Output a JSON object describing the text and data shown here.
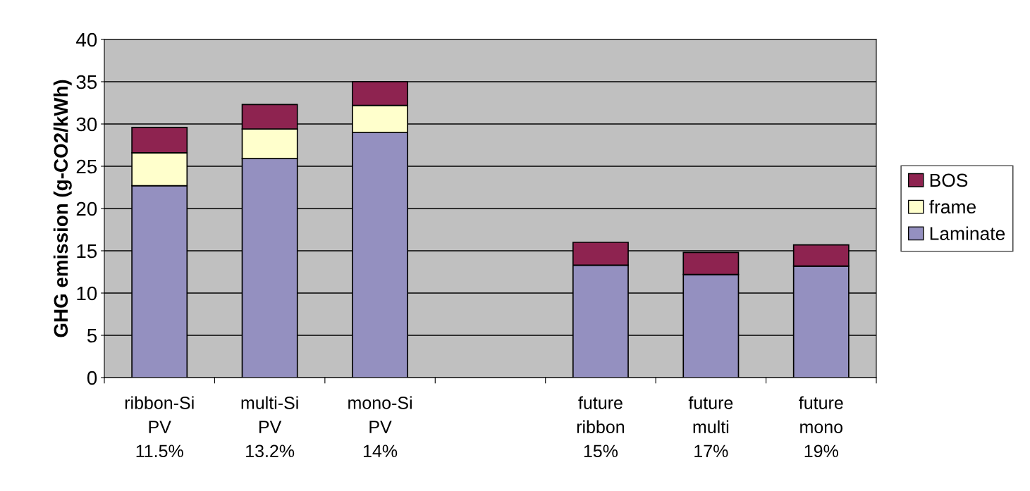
{
  "chart_data": {
    "type": "bar",
    "stacked": true,
    "ylabel": "GHG emission (g-CO2/kWh)",
    "categories": [
      "ribbon-Si\nPV\n11.5%",
      "multi-Si\nPV\n13.2%",
      "mono-Si\nPV\n14%",
      null,
      "future\nribbon\n15%",
      "future\nmulti\n17%",
      "future\nmono\n19%"
    ],
    "series": [
      {
        "name": "Laminate",
        "color": "#9490c0",
        "values": [
          22.7,
          25.9,
          29.0,
          null,
          13.3,
          12.2,
          13.2
        ]
      },
      {
        "name": "frame",
        "color": "#ffffcc",
        "values": [
          3.9,
          3.5,
          3.2,
          null,
          0,
          0,
          0
        ]
      },
      {
        "name": "BOS",
        "color": "#8e2350",
        "values": [
          3.0,
          2.9,
          2.8,
          null,
          2.7,
          2.6,
          2.5
        ]
      }
    ],
    "ylim": [
      0,
      40
    ],
    "yticks": [
      0,
      5,
      10,
      15,
      20,
      25,
      30,
      35,
      40
    ],
    "grid": "y",
    "legend": "right"
  }
}
